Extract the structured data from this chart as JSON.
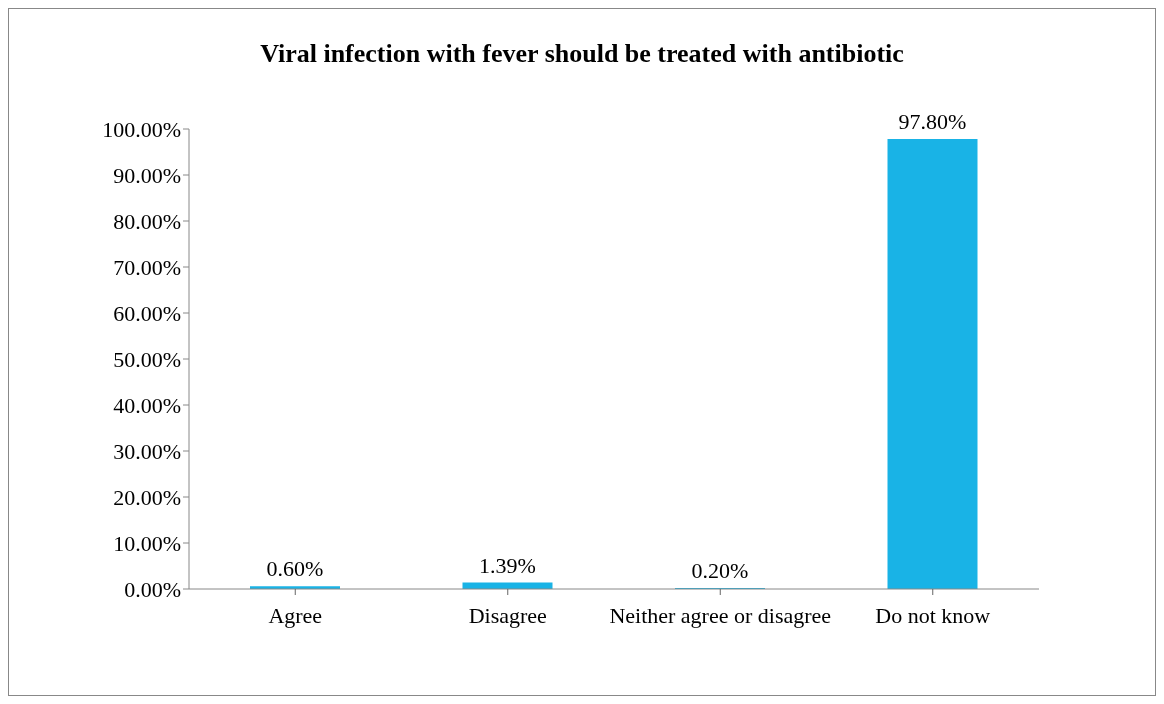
{
  "chart_data": {
    "type": "bar",
    "title": "Viral infection with fever should be treated with antibiotic",
    "categories": [
      "Agree",
      "Disagree",
      "Neither agree or disagree",
      "Do not know"
    ],
    "values": [
      0.6,
      1.39,
      0.2,
      97.8
    ],
    "value_labels": [
      "0.60%",
      "1.39%",
      "0.20%",
      "97.80%"
    ],
    "color": "#19b3e6",
    "ylim": [
      0,
      100
    ],
    "yticks": [
      {
        "value": 0,
        "label": "0.00%"
      },
      {
        "value": 10,
        "label": "10.00%"
      },
      {
        "value": 20,
        "label": "20.00%"
      },
      {
        "value": 30,
        "label": "30.00%"
      },
      {
        "value": 40,
        "label": "40.00%"
      },
      {
        "value": 50,
        "label": "50.00%"
      },
      {
        "value": 60,
        "label": "60.00%"
      },
      {
        "value": 70,
        "label": "70.00%"
      },
      {
        "value": 80,
        "label": "80.00%"
      },
      {
        "value": 90,
        "label": "90.00%"
      },
      {
        "value": 100,
        "label": "100.00%"
      }
    ],
    "grid": false,
    "legend": false
  }
}
